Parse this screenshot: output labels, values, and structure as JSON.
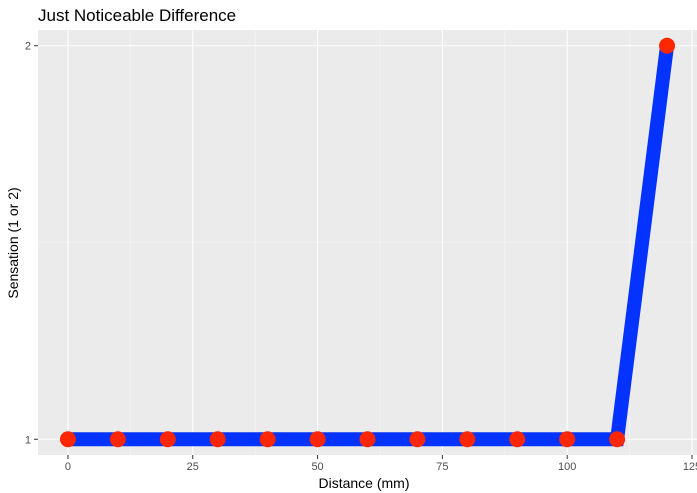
{
  "chart_data": {
    "type": "line",
    "title": "Just Noticeable Difference",
    "xlabel": "Distance (mm)",
    "ylabel": "Sensation (1 or 2)",
    "x": [
      0,
      10,
      20,
      30,
      40,
      50,
      60,
      70,
      80,
      90,
      100,
      110,
      120
    ],
    "series": [
      {
        "values": [
          1,
          1,
          1,
          1,
          1,
          1,
          1,
          1,
          1,
          1,
          1,
          1,
          2
        ]
      }
    ],
    "x_ticks": [
      0,
      25,
      50,
      75,
      100,
      125
    ],
    "y_ticks": [
      1,
      2
    ],
    "xlim": [
      -6,
      126
    ],
    "ylim": [
      0.96,
      2.04
    ],
    "grid": true,
    "legend": "none",
    "colors": {
      "panel_background": "#ebebeb",
      "grid_major": "#ffffff",
      "grid_minor": "#f5f5f5",
      "line": "#0433ff",
      "points": "#ff2600",
      "tick_marks": "#333333",
      "tick_labels": "#4d4d4d"
    }
  }
}
